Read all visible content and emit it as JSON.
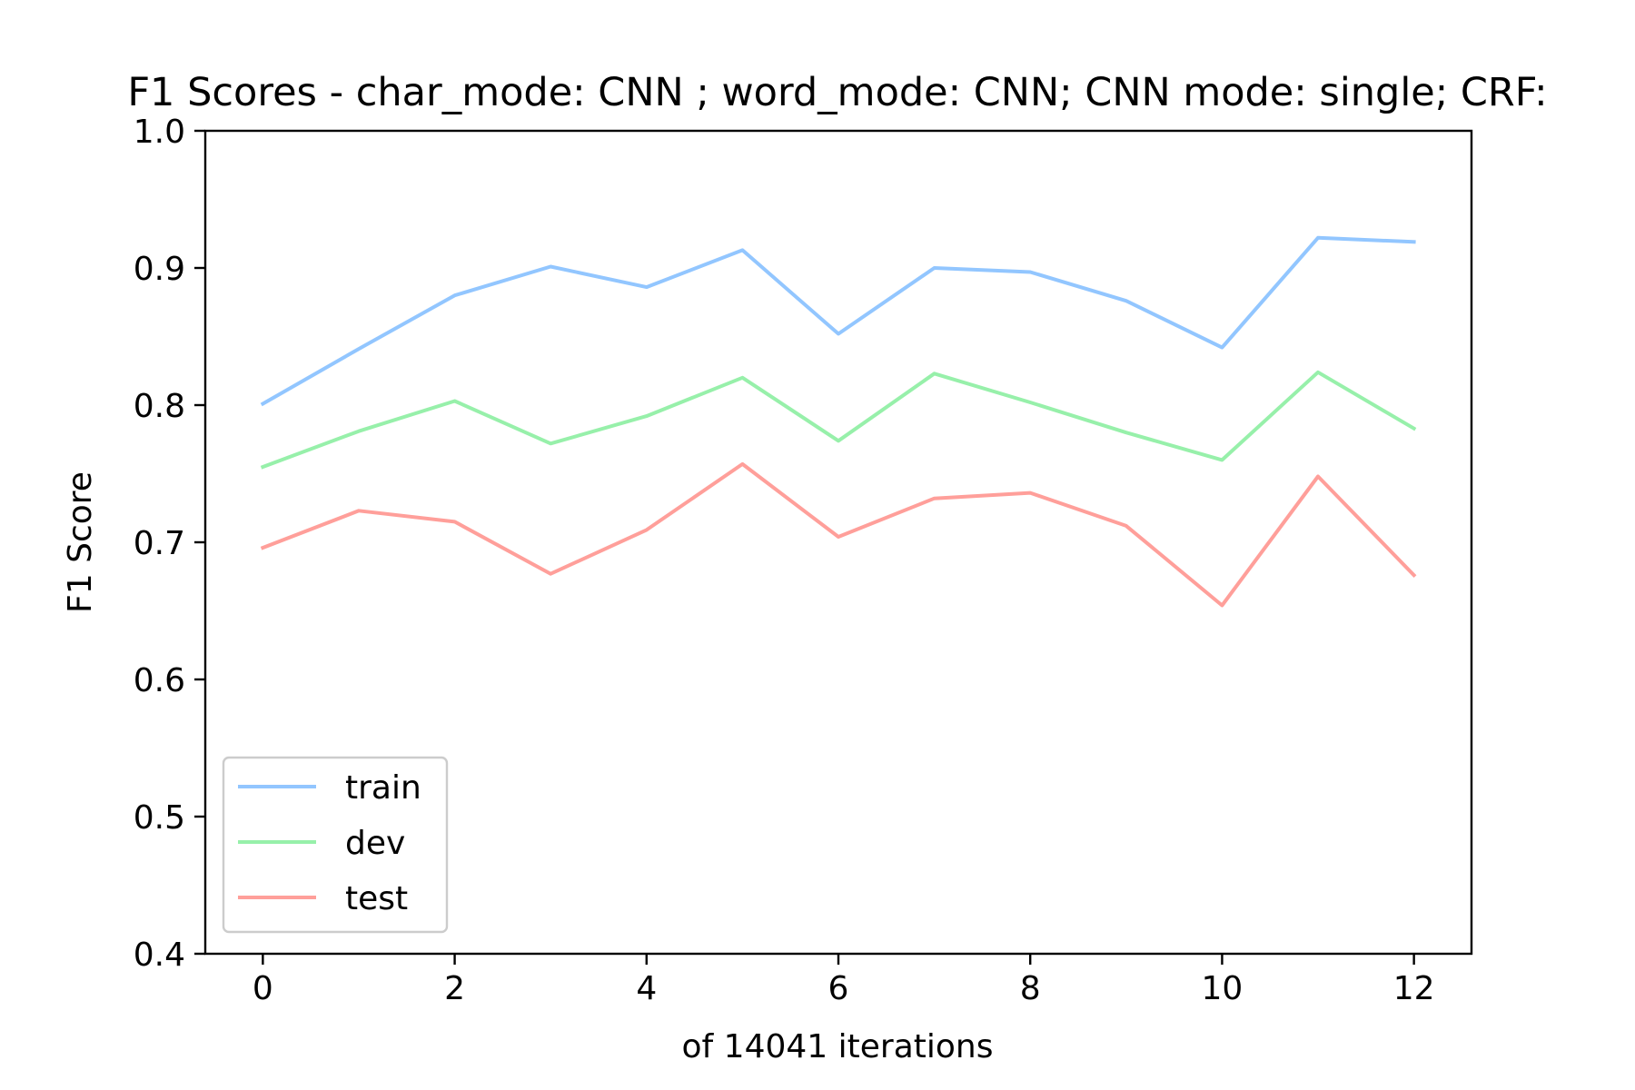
{
  "chart_data": {
    "type": "line",
    "title": "F1 Scores - char_mode: CNN ; word_mode: CNN; CNN mode: single; CRF:",
    "xlabel": "of 14041 iterations",
    "ylabel": "F1 Score",
    "xlim": [
      -0.6,
      12.6
    ],
    "ylim": [
      0.4,
      1.0
    ],
    "x": [
      0,
      1,
      2,
      3,
      4,
      5,
      6,
      7,
      8,
      9,
      10,
      11,
      12
    ],
    "x_ticks": [
      0,
      2,
      4,
      6,
      8,
      10,
      12
    ],
    "x_tick_labels": [
      "0",
      "2",
      "4",
      "6",
      "8",
      "10",
      "12"
    ],
    "y_ticks": [
      0.4,
      0.5,
      0.6,
      0.7,
      0.8,
      0.9,
      1.0
    ],
    "y_tick_labels": [
      "0.4",
      "0.5",
      "0.6",
      "0.7",
      "0.8",
      "0.9",
      "1.0"
    ],
    "grid": false,
    "legend_position": "lower-left",
    "series": [
      {
        "name": "train",
        "color": "#92c6ff",
        "values": [
          0.801,
          0.841,
          0.88,
          0.901,
          0.886,
          0.913,
          0.852,
          0.9,
          0.897,
          0.876,
          0.842,
          0.922,
          0.919
        ]
      },
      {
        "name": "dev",
        "color": "#97f0aa",
        "values": [
          0.755,
          0.781,
          0.803,
          0.772,
          0.792,
          0.82,
          0.774,
          0.823,
          0.802,
          0.78,
          0.76,
          0.824,
          0.783
        ]
      },
      {
        "name": "test",
        "color": "#ff9f9a",
        "values": [
          0.696,
          0.723,
          0.715,
          0.677,
          0.709,
          0.757,
          0.704,
          0.732,
          0.736,
          0.712,
          0.654,
          0.748,
          0.676
        ]
      }
    ]
  }
}
